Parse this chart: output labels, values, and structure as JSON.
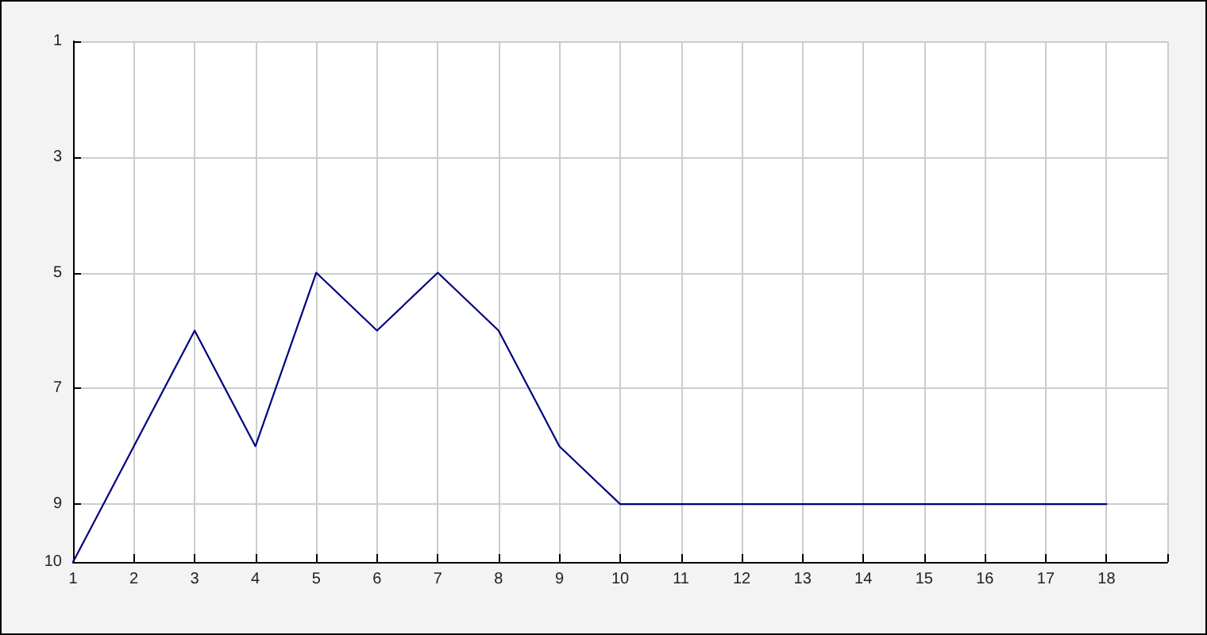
{
  "chart_data": {
    "type": "line",
    "x": [
      1,
      2,
      3,
      4,
      5,
      6,
      7,
      8,
      9,
      10,
      11,
      12,
      13,
      14,
      15,
      16,
      17,
      18
    ],
    "values": [
      10,
      8,
      6,
      8,
      5,
      6,
      5,
      6,
      8,
      9,
      9,
      9,
      9,
      9,
      9,
      9,
      9,
      9
    ],
    "color": "#000080",
    "xlim": [
      1,
      19
    ],
    "xticks": [
      1,
      2,
      3,
      4,
      5,
      6,
      7,
      8,
      9,
      10,
      11,
      12,
      13,
      14,
      15,
      16,
      17,
      18,
      {
        "value": 19,
        "label": null
      }
    ],
    "ylim": [
      10,
      1
    ],
    "yticks": [
      1,
      3,
      5,
      7,
      9,
      10
    ],
    "grid": true,
    "marker": "none",
    "line_style": "solid"
  }
}
